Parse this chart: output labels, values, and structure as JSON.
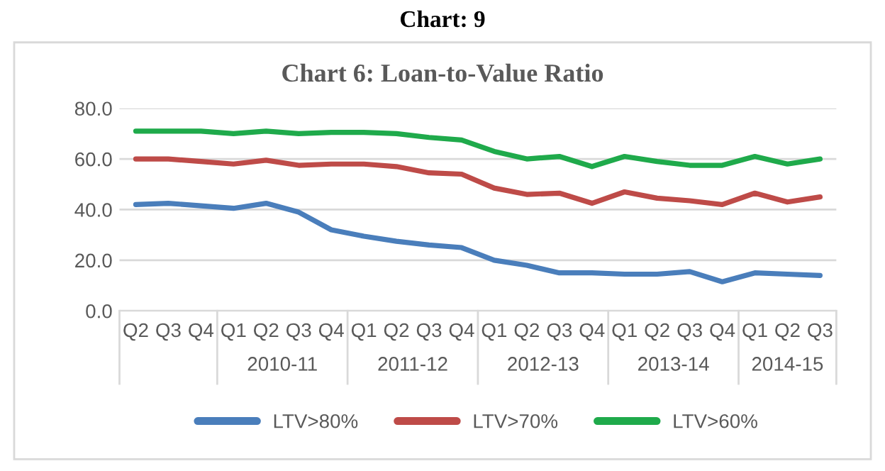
{
  "chart_data": {
    "type": "line",
    "title": "Chart: 9",
    "subtitle": "Chart 6: Loan-to-Value Ratio",
    "categories": [
      "Q2",
      "Q3",
      "Q4",
      "Q1",
      "Q2",
      "Q3",
      "Q4",
      "Q1",
      "Q2",
      "Q3",
      "Q4",
      "Q1",
      "Q2",
      "Q3",
      "Q4",
      "Q1",
      "Q2",
      "Q3",
      "Q4",
      "Q1",
      "Q2",
      "Q3"
    ],
    "annotations": [
      "2010-11",
      "2011-12",
      "2012-13",
      "2013-14",
      "2014-15"
    ],
    "series": [
      {
        "name": "LTV>80%",
        "color": "#4a7ebb",
        "values": [
          42,
          42.5,
          41.5,
          40.5,
          42.5,
          39,
          32,
          29.5,
          27.5,
          26,
          25,
          20,
          18,
          15,
          15,
          14.5,
          14.5,
          15.5,
          11.5,
          15,
          14.5,
          14
        ]
      },
      {
        "name": "LTV>70%",
        "color": "#be4b48",
        "values": [
          60,
          60,
          59,
          58,
          59.5,
          57.5,
          58,
          58,
          57,
          54.5,
          54,
          48.5,
          46,
          46.5,
          42.5,
          47,
          44.5,
          43.5,
          42,
          46.5,
          43,
          45
        ]
      },
      {
        "name": "LTV>60%",
        "color": "#1faa4b",
        "values": [
          71,
          71,
          71,
          70,
          71,
          70,
          70.5,
          70.5,
          70,
          68.5,
          67.5,
          63,
          60,
          61,
          57,
          61,
          59,
          57.5,
          57.5,
          61,
          58,
          60
        ]
      }
    ],
    "ylim": [
      0,
      80
    ],
    "yticks": [
      {
        "value": 0,
        "label": "0.0"
      },
      {
        "value": 20,
        "label": "20.0"
      },
      {
        "value": 40,
        "label": "40.0"
      },
      {
        "value": 60,
        "label": "60.0"
      },
      {
        "value": 80,
        "label": "80.0"
      }
    ],
    "grid": "y",
    "legend": "bottom",
    "marker": "none",
    "line_style": "solid"
  }
}
